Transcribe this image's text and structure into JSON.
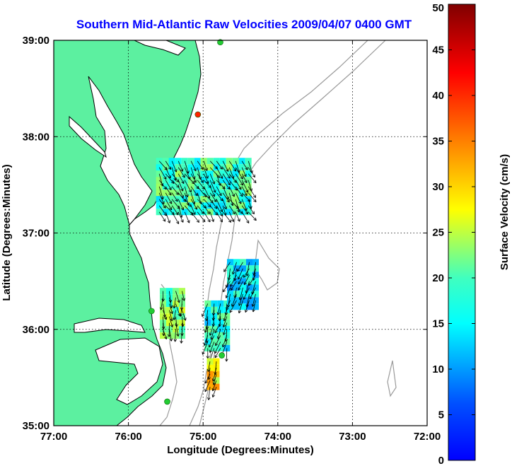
{
  "chart_data": {
    "type": "scatter",
    "title": "Southern Mid-Atlantic Raw Velocities 2009/04/07 0400 GMT",
    "xlabel": "Longitude (Degrees:Minutes)",
    "ylabel": "Latitude (Degrees:Minutes)",
    "xlim": [
      -77,
      -72
    ],
    "ylim": [
      35,
      39
    ],
    "x_ticks": [
      -77,
      -76,
      -75,
      -74,
      -73,
      -72
    ],
    "x_tick_labels": [
      "77:00",
      "76:00",
      "75:00",
      "74:00",
      "73:00",
      "72:00"
    ],
    "y_ticks": [
      35,
      36,
      37,
      38,
      39
    ],
    "y_tick_labels": [
      "35:00",
      "36:00",
      "37:00",
      "38:00",
      "39:00"
    ],
    "grid": true,
    "colorbar": {
      "label": "Surface Velocity (cm/s)",
      "min": 0,
      "max": 50,
      "ticks": [
        0,
        5,
        10,
        15,
        20,
        25,
        30,
        35,
        40,
        45,
        50
      ],
      "tick_labels": [
        "0",
        "5",
        "10",
        "15",
        "20",
        "25",
        "30",
        "35",
        "40",
        "45",
        "50"
      ],
      "colormap": "jet"
    },
    "land_color": "#5cf0a0",
    "ocean_color": "#ffffff",
    "coastline_color": "#000000",
    "bathymetry_color": "#9a9a9a",
    "stations": [
      {
        "lon": -74.77,
        "lat": 38.98,
        "color": "#22cc33"
      },
      {
        "lon": -75.07,
        "lat": 38.23,
        "color": "#ff2200"
      },
      {
        "lon": -75.69,
        "lat": 36.19,
        "color": "#22cc33"
      },
      {
        "lon": -74.75,
        "lat": 35.73,
        "color": "#22cc33"
      },
      {
        "lon": -75.48,
        "lat": 35.25,
        "color": "#22cc33"
      }
    ],
    "vector_regions": [
      {
        "lon_min": -75.63,
        "lon_max": -74.38,
        "lat_min": 37.2,
        "lat_max": 37.78,
        "speed": 22,
        "dir_deg": 150
      },
      {
        "lon_min": -75.58,
        "lon_max": -75.27,
        "lat_min": 35.95,
        "lat_max": 36.43,
        "speed": 25,
        "dir_deg": 175
      },
      {
        "lon_min": -74.98,
        "lon_max": -74.68,
        "lat_min": 35.8,
        "lat_max": 36.3,
        "speed": 20,
        "dir_deg": 195
      },
      {
        "lon_min": -74.68,
        "lon_max": -74.28,
        "lat_min": 36.25,
        "lat_max": 36.73,
        "speed": 18,
        "dir_deg": 200
      },
      {
        "lon_min": -74.95,
        "lon_max": -74.78,
        "lat_min": 35.37,
        "lat_max": 35.7,
        "speed": 32,
        "dir_deg": 200
      }
    ]
  }
}
